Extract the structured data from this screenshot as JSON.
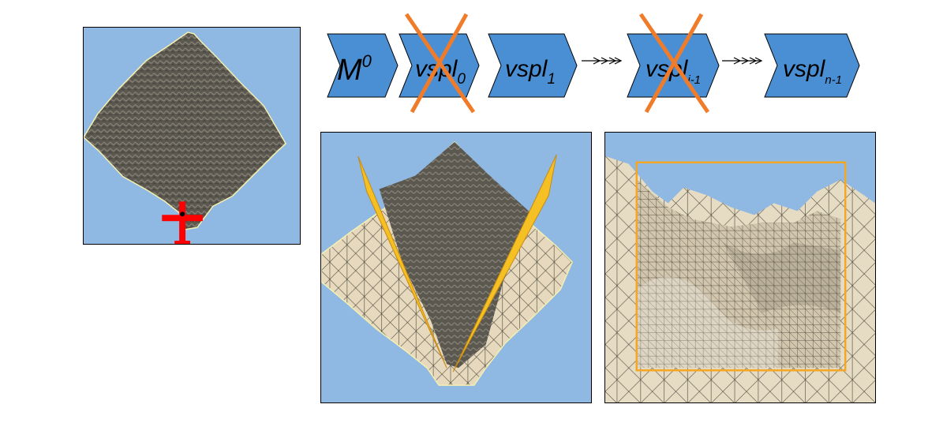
{
  "sequence": {
    "items": [
      {
        "base": "M",
        "mark": "0",
        "mark_type": "sup",
        "crossed": false
      },
      {
        "base": "vspl",
        "mark": "0",
        "mark_type": "sub",
        "crossed": true
      },
      {
        "base": "vspl",
        "mark": "1",
        "mark_type": "sub",
        "crossed": false
      },
      {
        "base": "vspl",
        "mark": "i-1",
        "mark_type": "sub",
        "crossed": true
      },
      {
        "base": "vspl",
        "mark": "n-1",
        "mark_type": "sub",
        "crossed": false
      }
    ]
  },
  "colors": {
    "chevron_fill": "#4a8fd4",
    "sky": "#8fb9e2",
    "cross": "#f07c2a",
    "frustum": "#f5a623",
    "mesh_light": "#e6d9be",
    "terrain_dark": "#5d5a52",
    "viewer": "#ff0000"
  },
  "icons": {
    "viewer": "airplane-icon"
  }
}
